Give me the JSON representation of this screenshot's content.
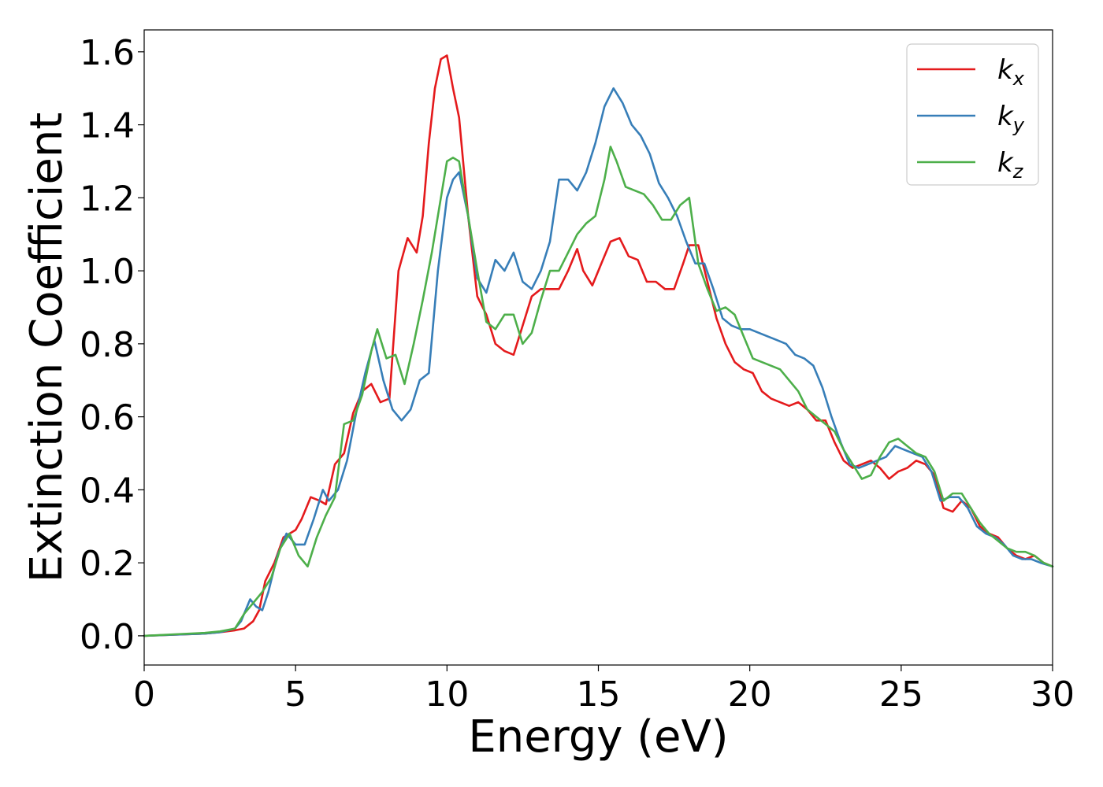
{
  "chart_data": {
    "type": "line",
    "title": "",
    "xlabel": "Energy (eV)",
    "ylabel": "Extinction Coefficient",
    "xlim": [
      0,
      30
    ],
    "ylim": [
      -0.08,
      1.66
    ],
    "xticks": [
      0,
      5,
      10,
      15,
      20,
      25,
      30
    ],
    "xtick_labels": [
      "0",
      "5",
      "10",
      "15",
      "20",
      "25",
      "30"
    ],
    "yticks": [
      0.0,
      0.2,
      0.4,
      0.6,
      0.8,
      1.0,
      1.2,
      1.4,
      1.6
    ],
    "ytick_labels": [
      "0.0",
      "0.2",
      "0.4",
      "0.6",
      "0.8",
      "1.0",
      "1.2",
      "1.4",
      "1.6"
    ],
    "grid": false,
    "legend": {
      "position": "top-right"
    },
    "series": [
      {
        "name": "kx",
        "label_main": "k",
        "label_sub": "x",
        "color": "#e41a1c",
        "x": [
          0,
          1,
          2,
          2.5,
          3,
          3.3,
          3.6,
          3.8,
          4.0,
          4.3,
          4.6,
          5.0,
          5.2,
          5.5,
          5.8,
          6.0,
          6.3,
          6.6,
          6.9,
          7.2,
          7.5,
          7.8,
          8.1,
          8.4,
          8.7,
          9.0,
          9.2,
          9.4,
          9.6,
          9.8,
          10.0,
          10.2,
          10.4,
          10.7,
          11.0,
          11.3,
          11.6,
          11.9,
          12.2,
          12.5,
          12.8,
          13.1,
          13.4,
          13.7,
          14.0,
          14.3,
          14.5,
          14.8,
          15.1,
          15.4,
          15.7,
          16.0,
          16.3,
          16.6,
          16.9,
          17.2,
          17.5,
          17.8,
          18.0,
          18.3,
          18.6,
          18.9,
          19.2,
          19.5,
          19.8,
          20.1,
          20.4,
          20.7,
          21.0,
          21.3,
          21.6,
          21.9,
          22.2,
          22.5,
          22.8,
          23.1,
          23.4,
          23.7,
          24.0,
          24.3,
          24.6,
          24.9,
          25.2,
          25.5,
          25.8,
          26.1,
          26.4,
          26.7,
          27.0,
          27.3,
          27.6,
          27.9,
          28.2,
          28.5,
          28.8,
          29.1,
          29.4,
          29.7,
          30
        ],
        "y": [
          0,
          0.003,
          0.006,
          0.01,
          0.015,
          0.02,
          0.04,
          0.07,
          0.15,
          0.2,
          0.27,
          0.29,
          0.32,
          0.38,
          0.37,
          0.36,
          0.47,
          0.5,
          0.61,
          0.67,
          0.69,
          0.64,
          0.65,
          1.0,
          1.09,
          1.05,
          1.15,
          1.35,
          1.5,
          1.58,
          1.59,
          1.5,
          1.42,
          1.15,
          0.93,
          0.88,
          0.8,
          0.78,
          0.77,
          0.85,
          0.93,
          0.95,
          0.95,
          0.95,
          1.0,
          1.06,
          1.0,
          0.96,
          1.02,
          1.08,
          1.09,
          1.04,
          1.03,
          0.97,
          0.97,
          0.95,
          0.95,
          1.02,
          1.07,
          1.07,
          0.97,
          0.87,
          0.8,
          0.75,
          0.73,
          0.72,
          0.67,
          0.65,
          0.64,
          0.63,
          0.64,
          0.62,
          0.59,
          0.59,
          0.53,
          0.48,
          0.46,
          0.47,
          0.48,
          0.46,
          0.43,
          0.45,
          0.46,
          0.48,
          0.47,
          0.44,
          0.35,
          0.34,
          0.37,
          0.35,
          0.3,
          0.28,
          0.27,
          0.24,
          0.22,
          0.21,
          0.22,
          0.2,
          0.19
        ]
      },
      {
        "name": "ky",
        "label_main": "k",
        "label_sub": "y",
        "color": "#377eb8",
        "x": [
          0,
          1,
          2,
          2.5,
          3,
          3.2,
          3.5,
          3.7,
          3.9,
          4.1,
          4.4,
          4.7,
          5.0,
          5.3,
          5.6,
          5.9,
          6.1,
          6.4,
          6.7,
          7.0,
          7.3,
          7.6,
          7.9,
          8.2,
          8.5,
          8.8,
          9.1,
          9.4,
          9.7,
          10.0,
          10.2,
          10.4,
          10.7,
          11.0,
          11.3,
          11.6,
          11.9,
          12.2,
          12.5,
          12.8,
          13.1,
          13.4,
          13.7,
          14.0,
          14.3,
          14.6,
          14.9,
          15.2,
          15.5,
          15.8,
          16.1,
          16.4,
          16.7,
          17.0,
          17.3,
          17.6,
          17.9,
          18.2,
          18.5,
          18.8,
          19.1,
          19.4,
          19.7,
          20.0,
          20.3,
          20.6,
          20.9,
          21.2,
          21.5,
          21.8,
          22.1,
          22.4,
          22.7,
          23.0,
          23.3,
          23.6,
          23.9,
          24.2,
          24.5,
          24.8,
          25.1,
          25.4,
          25.7,
          26.0,
          26.3,
          26.6,
          26.9,
          27.2,
          27.5,
          27.8,
          28.1,
          28.4,
          28.7,
          29.0,
          29.3,
          29.6,
          30
        ],
        "y": [
          0,
          0.003,
          0.006,
          0.01,
          0.02,
          0.04,
          0.1,
          0.08,
          0.07,
          0.12,
          0.22,
          0.28,
          0.25,
          0.25,
          0.32,
          0.4,
          0.37,
          0.4,
          0.48,
          0.61,
          0.72,
          0.81,
          0.7,
          0.62,
          0.59,
          0.62,
          0.7,
          0.72,
          1.0,
          1.2,
          1.25,
          1.27,
          1.15,
          0.98,
          0.94,
          1.03,
          1.0,
          1.05,
          0.97,
          0.95,
          1.0,
          1.08,
          1.25,
          1.25,
          1.22,
          1.27,
          1.35,
          1.45,
          1.5,
          1.46,
          1.4,
          1.37,
          1.32,
          1.24,
          1.2,
          1.15,
          1.08,
          1.02,
          1.02,
          0.95,
          0.87,
          0.85,
          0.84,
          0.84,
          0.83,
          0.82,
          0.81,
          0.8,
          0.77,
          0.76,
          0.74,
          0.68,
          0.6,
          0.53,
          0.47,
          0.46,
          0.47,
          0.48,
          0.49,
          0.52,
          0.51,
          0.5,
          0.49,
          0.45,
          0.37,
          0.38,
          0.38,
          0.35,
          0.3,
          0.28,
          0.27,
          0.25,
          0.22,
          0.21,
          0.21,
          0.2,
          0.19
        ]
      },
      {
        "name": "kz",
        "label_main": "k",
        "label_sub": "z",
        "color": "#4daf4a",
        "x": [
          0,
          1,
          2,
          2.5,
          3,
          3.3,
          3.6,
          3.9,
          4.2,
          4.5,
          4.8,
          5.1,
          5.4,
          5.7,
          6.0,
          6.3,
          6.6,
          6.9,
          7.2,
          7.5,
          7.7,
          8.0,
          8.3,
          8.6,
          8.9,
          9.2,
          9.5,
          9.8,
          10.0,
          10.2,
          10.4,
          10.7,
          11.0,
          11.3,
          11.6,
          11.9,
          12.2,
          12.5,
          12.8,
          13.1,
          13.4,
          13.7,
          14.0,
          14.3,
          14.6,
          14.9,
          15.2,
          15.4,
          15.6,
          15.9,
          16.2,
          16.5,
          16.8,
          17.1,
          17.4,
          17.7,
          18.0,
          18.3,
          18.6,
          18.9,
          19.2,
          19.5,
          19.8,
          20.1,
          20.4,
          20.7,
          21.0,
          21.3,
          21.6,
          21.9,
          22.2,
          22.5,
          22.8,
          23.1,
          23.4,
          23.7,
          24.0,
          24.3,
          24.6,
          24.9,
          25.2,
          25.5,
          25.8,
          26.1,
          26.4,
          26.7,
          27.0,
          27.3,
          27.6,
          27.9,
          28.2,
          28.5,
          28.8,
          29.1,
          29.4,
          29.7,
          30
        ],
        "y": [
          0,
          0.004,
          0.008,
          0.012,
          0.02,
          0.06,
          0.09,
          0.12,
          0.16,
          0.24,
          0.28,
          0.22,
          0.19,
          0.27,
          0.33,
          0.38,
          0.58,
          0.59,
          0.66,
          0.78,
          0.84,
          0.76,
          0.77,
          0.69,
          0.8,
          0.92,
          1.05,
          1.2,
          1.3,
          1.31,
          1.3,
          1.15,
          1.0,
          0.86,
          0.84,
          0.88,
          0.88,
          0.8,
          0.83,
          0.92,
          1.0,
          1.0,
          1.05,
          1.1,
          1.13,
          1.15,
          1.25,
          1.34,
          1.3,
          1.23,
          1.22,
          1.21,
          1.18,
          1.14,
          1.14,
          1.18,
          1.2,
          1.02,
          0.95,
          0.89,
          0.9,
          0.88,
          0.82,
          0.76,
          0.75,
          0.74,
          0.73,
          0.7,
          0.67,
          0.62,
          0.6,
          0.58,
          0.56,
          0.51,
          0.47,
          0.43,
          0.44,
          0.49,
          0.53,
          0.54,
          0.52,
          0.5,
          0.49,
          0.45,
          0.37,
          0.39,
          0.39,
          0.35,
          0.31,
          0.28,
          0.26,
          0.24,
          0.23,
          0.23,
          0.22,
          0.2,
          0.19
        ]
      }
    ]
  }
}
